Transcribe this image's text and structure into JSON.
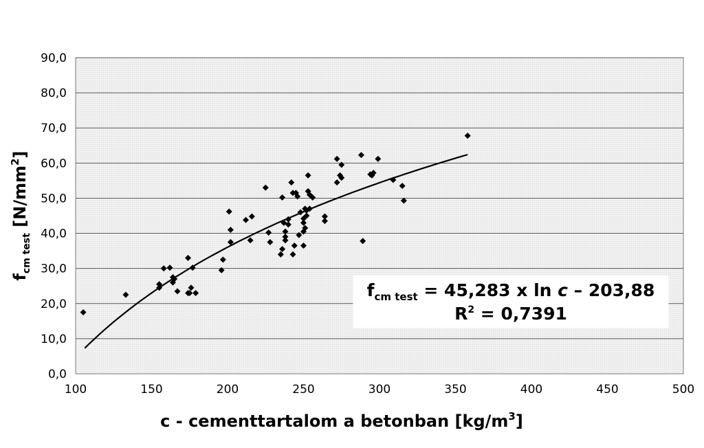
{
  "chart_data": {
    "type": "scatter",
    "title": "",
    "xlabel": {
      "main": "c - cementtartalom a betonban [kg/m",
      "sup": "3",
      "end": "]"
    },
    "ylabel": {
      "main": "f",
      "sub": "cm test",
      "units": "[N/mm",
      "sup": "2",
      "end": "]"
    },
    "xlim": [
      100,
      500
    ],
    "ylim": [
      0,
      90
    ],
    "x_ticks": [
      "100",
      "150",
      "200",
      "250",
      "300",
      "350",
      "400",
      "450",
      "500"
    ],
    "y_ticks": [
      "0,0",
      "10,0",
      "20,0",
      "30,0",
      "40,0",
      "50,0",
      "60,0",
      "70,0",
      "80,0",
      "90,0"
    ],
    "grid": "horizontal",
    "points": [
      [
        105,
        17.5
      ],
      [
        133,
        22.5
      ],
      [
        155,
        24.5
      ],
      [
        155,
        25.5
      ],
      [
        158,
        30
      ],
      [
        162,
        30.2
      ],
      [
        164,
        27.5
      ],
      [
        164,
        26
      ],
      [
        165,
        27
      ],
      [
        167,
        23.5
      ],
      [
        174,
        33
      ],
      [
        174,
        23
      ],
      [
        175,
        23
      ],
      [
        176,
        24.5
      ],
      [
        177,
        30.2
      ],
      [
        179,
        23
      ],
      [
        196,
        29.5
      ],
      [
        197,
        32.5
      ],
      [
        201,
        46.2
      ],
      [
        202,
        41
      ],
      [
        202,
        37.5
      ],
      [
        212,
        43.8
      ],
      [
        215,
        38
      ],
      [
        216,
        44.8
      ],
      [
        225,
        53
      ],
      [
        227,
        40.2
      ],
      [
        228,
        37.5
      ],
      [
        235,
        34
      ],
      [
        236,
        35.5
      ],
      [
        236,
        50.2
      ],
      [
        237,
        43
      ],
      [
        238,
        40.5
      ],
      [
        238,
        39
      ],
      [
        238,
        38
      ],
      [
        240,
        42.5
      ],
      [
        240,
        44
      ],
      [
        242,
        54.5
      ],
      [
        243,
        51.5
      ],
      [
        243,
        34
      ],
      [
        244,
        36.5
      ],
      [
        245,
        51.5
      ],
      [
        246,
        50.5
      ],
      [
        247,
        39.5
      ],
      [
        248,
        46
      ],
      [
        250,
        44.2
      ],
      [
        250,
        43
      ],
      [
        250,
        40.5
      ],
      [
        250,
        36.5
      ],
      [
        251,
        47
      ],
      [
        251,
        41.5
      ],
      [
        252,
        46.5
      ],
      [
        252,
        45
      ],
      [
        253,
        52
      ],
      [
        253,
        56.5
      ],
      [
        254,
        51
      ],
      [
        254,
        47
      ],
      [
        256,
        50.2
      ],
      [
        264,
        43.5
      ],
      [
        264,
        44.8
      ],
      [
        272,
        54.5
      ],
      [
        272,
        61.2
      ],
      [
        274,
        56.5
      ],
      [
        275,
        59.5
      ],
      [
        275,
        55.8
      ],
      [
        288,
        62.3
      ],
      [
        289,
        37.8
      ],
      [
        294,
        56.8
      ],
      [
        295,
        56.5
      ],
      [
        296,
        57.2
      ],
      [
        299,
        61.2
      ],
      [
        309,
        55.2
      ],
      [
        315,
        53.5
      ],
      [
        316,
        49.3
      ],
      [
        358,
        67.8
      ]
    ],
    "trendline": {
      "a": 45.283,
      "b": -203.88,
      "x_start": 106,
      "x_end": 358
    },
    "equation": {
      "f": "f",
      "sub": "cm test",
      "rest": " = 45,283 x ln ",
      "var": "c",
      "tail": " – 203,88",
      "r2_label": "R",
      "r2_sup": "2",
      "r2_value": " = 0,7391"
    }
  }
}
